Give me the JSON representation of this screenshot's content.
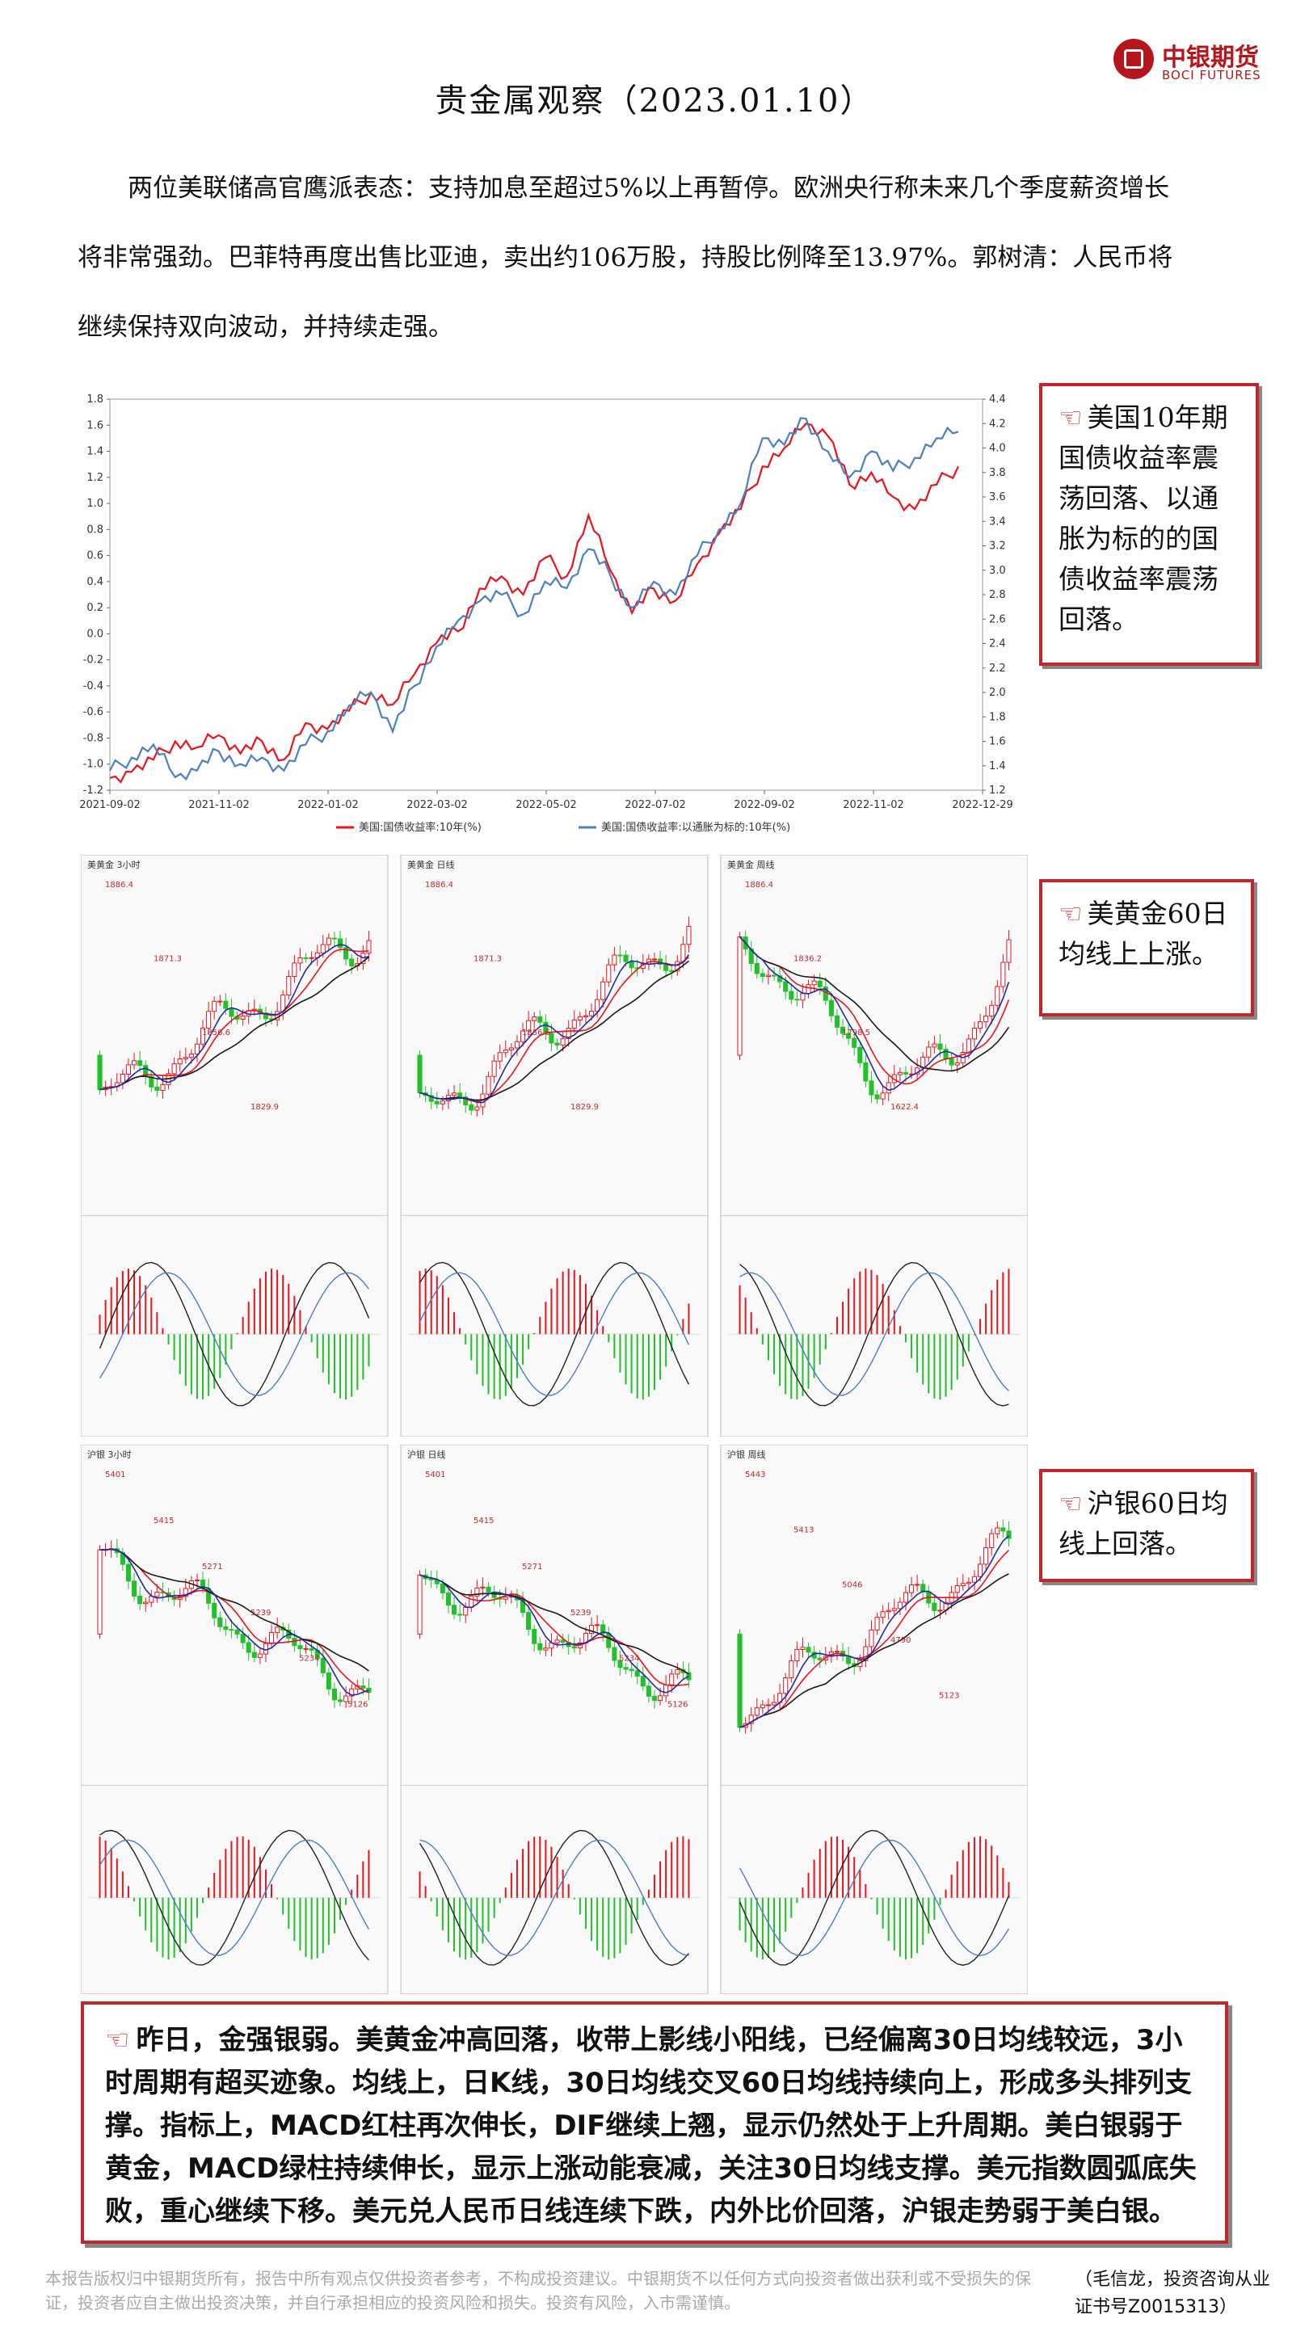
{
  "header": {
    "title": "贵金属观察（2023.01.10）",
    "logo_name": "中银期货",
    "logo_en": "BOCI FUTURES"
  },
  "intro": {
    "lines": [
      "两位美联储高官鹰派表态：支持加息至超过5%以上再暂停。欧洲央行称未来几个季度薪资增长",
      "将非常强劲。巴菲特再度出售比亚迪，卖出约106万股，持股比例降至13.97%。郭树清：人民币将",
      "继续保持双向波动，并持续走强。"
    ]
  },
  "notes": {
    "treasury": "美国10年期国债收益率震荡回落、以通胀为标的的国债收益率震荡回落。",
    "gold": "美黄金60日均线上上涨。",
    "silver": "沪银60日均线上回落。"
  },
  "chart_data": [
    {
      "type": "line",
      "x_ticks": [
        "2021-09-02",
        "2021-11-02",
        "2022-01-02",
        "2022-03-02",
        "2022-05-02",
        "2022-07-02",
        "2022-09-02",
        "2022-11-02",
        "2022-12-29"
      ],
      "y_left_ticks": [
        "1.8",
        "1.6",
        "1.4",
        "1.2",
        "1.0",
        "0.8",
        "0.6",
        "0.4",
        "0.2",
        "0.0",
        "-0.2",
        "-0.4",
        "-0.6",
        "-0.8",
        "-1.0",
        "-1.2"
      ],
      "y_right_ticks": [
        "4.4",
        "4.2",
        "4.0",
        "3.8",
        "3.6",
        "3.4",
        "3.2",
        "3.0",
        "2.8",
        "2.6",
        "2.4",
        "2.2",
        "2.0",
        "1.8",
        "1.6",
        "1.4",
        "1.2"
      ],
      "ylim_left": [
        -1.2,
        1.8
      ],
      "ylim_right": [
        1.2,
        4.4
      ],
      "series": [
        {
          "name": "美国:国债收益率:10年(%)",
          "color": "#e8141c",
          "axis": "right",
          "values": [
            1.3,
            1.35,
            1.45,
            1.6,
            1.55,
            1.65,
            1.5,
            1.6,
            1.45,
            1.75,
            1.7,
            1.85,
            2.0,
            1.9,
            2.15,
            2.4,
            2.5,
            2.85,
            2.95,
            2.8,
            3.1,
            2.95,
            3.45,
            3.0,
            2.65,
            2.85,
            2.75,
            3.05,
            3.3,
            3.5,
            3.85,
            4.0,
            4.2,
            4.1,
            3.7,
            3.8,
            3.6,
            3.5,
            3.7,
            3.85
          ]
        },
        {
          "name": "美国:国债收益率:以通胀为标的:10年(%)",
          "color": "#4a7fc1",
          "axis": "left",
          "values": [
            -1.05,
            -0.95,
            -0.85,
            -1.1,
            -1.05,
            -0.9,
            -1.0,
            -0.95,
            -1.05,
            -0.85,
            -0.75,
            -0.55,
            -0.45,
            -0.75,
            -0.4,
            -0.1,
            0.1,
            0.25,
            0.3,
            0.15,
            0.4,
            0.35,
            0.65,
            0.45,
            0.2,
            0.4,
            0.3,
            0.6,
            0.8,
            1.0,
            1.5,
            1.45,
            1.65,
            1.4,
            1.2,
            1.4,
            1.25,
            1.35,
            1.5,
            1.55
          ]
        }
      ]
    },
    {
      "type": "candlestick",
      "name": "美黄金",
      "panels": [
        {
          "header": "美黄金 3小时",
          "labels": [
            "1886.4",
            "1871.3",
            "1856.6",
            "1829.9"
          ]
        },
        {
          "header": "美黄金 日线",
          "labels": [
            "1886.4",
            "1871.3",
            "1856.6",
            "1829.9"
          ]
        },
        {
          "header": "美黄金 周线",
          "labels": [
            "1886.4",
            "1836.2",
            "1798.5",
            "1622.4"
          ]
        }
      ]
    },
    {
      "type": "candlestick",
      "name": "沪银",
      "panels": [
        {
          "header": "沪银 3小时",
          "labels": [
            "5401",
            "5415",
            "5271",
            "5239",
            "5234",
            "5126"
          ]
        },
        {
          "header": "沪银 日线",
          "labels": [
            "5401",
            "5415",
            "5271",
            "5239",
            "5234",
            "5126"
          ]
        },
        {
          "header": "沪银 周线",
          "labels": [
            "5443",
            "5413",
            "5046",
            "4790",
            "5123"
          ]
        }
      ]
    }
  ],
  "summary": "昨日，金强银弱。美黄金冲高回落，收带上影线小阳线，已经偏离30日均线较远，3小时周期有超买迹象。均线上，日K线，30日均线交叉60日均线持续向上，形成多头排列支撑。指标上，MACD红柱再次伸长，DIF继续上翘，显示仍然处于上升周期。美白银弱于黄金，MACD绿柱持续伸长，显示上涨动能衰减，关注30日均线支撑。美元指数圆弧底失败，重心继续下移。美元兑人民币日线连续下跌，内外比价回落，沪银走势弱于美白银。",
  "footer": {
    "disclaimer": "本报告版权归中银期货所有，报告中所有观点仅供投资者参考，不构成投资建议。中银期货不以任何方式向投资者做出获利或不受损失的保证，投资者应自主做出投资决策，并自行承担相应的投资风险和损失。投资有风险，入市需谨慎。",
    "author": "（毛信龙，投资咨询从业证书号Z0015313）"
  },
  "colors": {
    "brand": "#b5161b",
    "note_border": "#c0272d",
    "up": "#e8141c",
    "down": "#22c02a"
  }
}
